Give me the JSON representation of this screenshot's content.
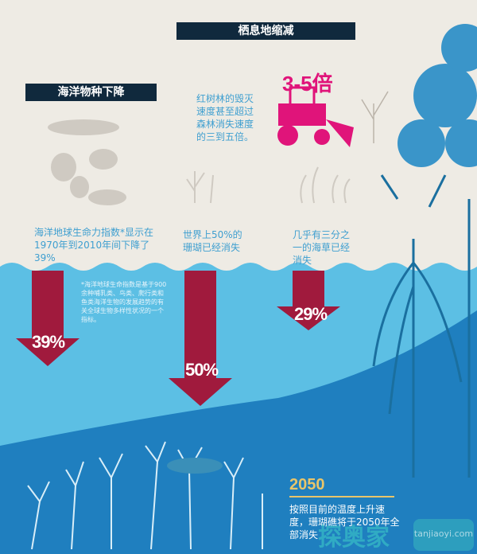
{
  "habitat_title": "栖息地缩减",
  "marine_title": "海洋物种下降",
  "mangrove": {
    "multiplier": "3-5倍",
    "text": "红树林的毁灭速度甚至超过森林消失速度的三到五倍。"
  },
  "living_index": {
    "text": "海洋地球生命力指数*显示在1970年到2010年间下降了39%",
    "percent": "39%",
    "footnote": "*海洋地球生命指数是基于900余种哺乳类、鸟类、爬行类和鱼类海洋生物的发展趋势的有关全球生物多样性状况的一个指标。"
  },
  "coral": {
    "text": "世界上50%的珊瑚已经消失",
    "percent": "50%"
  },
  "seagrass": {
    "text": "几乎有三分之一的海草已经消失",
    "percent": "29%"
  },
  "forecast": {
    "year": "2050",
    "text": "按照目前的温度上升速度，珊瑚礁将于2050年全部消失"
  },
  "watermark": {
    "cn": "探奥家",
    "url": "tanjiaoyi.com"
  },
  "colors": {
    "cream": "#eeebe4",
    "navy": "#10293d",
    "crimson": "#a01a3d",
    "magenta": "#e0147a",
    "light_water": "#5cbfe4",
    "deep_water": "#1f7fbf",
    "gold": "#e8c56a"
  }
}
